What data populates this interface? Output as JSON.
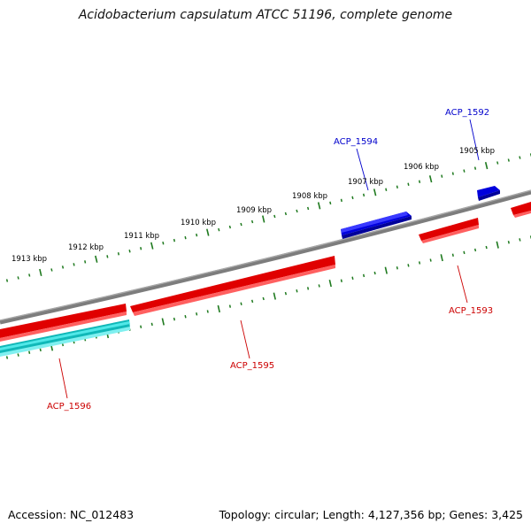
{
  "title": "Acidobacterium capsulatum ATCC 51196, complete genome",
  "footer": {
    "accession": "Accession: NC_012483",
    "summary": "Topology: circular; Length: 4,127,356 bp; Genes: 3,425"
  },
  "colors": {
    "backbone": "#7d7d7d",
    "tick": "#1f7a1f",
    "forward_gene": "#0000ee",
    "reverse_gene": "#e00000",
    "rna_gene": "#10c8c8",
    "forward_label": "#0000cc",
    "reverse_label": "#cc0000"
  },
  "scale_labels": [
    "1905 kbp",
    "1906 kbp",
    "1907 kbp",
    "1908 kbp",
    "1909 kbp",
    "1910 kbp",
    "1911 kbp",
    "1912 kbp",
    "1913 kbp"
  ],
  "genes": [
    {
      "name": "ACP_1592",
      "strand": "forward"
    },
    {
      "name": "ACP_1594",
      "strand": "forward"
    },
    {
      "name": "ACP_1593",
      "strand": "reverse"
    },
    {
      "name": "ACP_1595",
      "strand": "reverse"
    },
    {
      "name": "ACP_1596",
      "strand": "reverse"
    }
  ]
}
